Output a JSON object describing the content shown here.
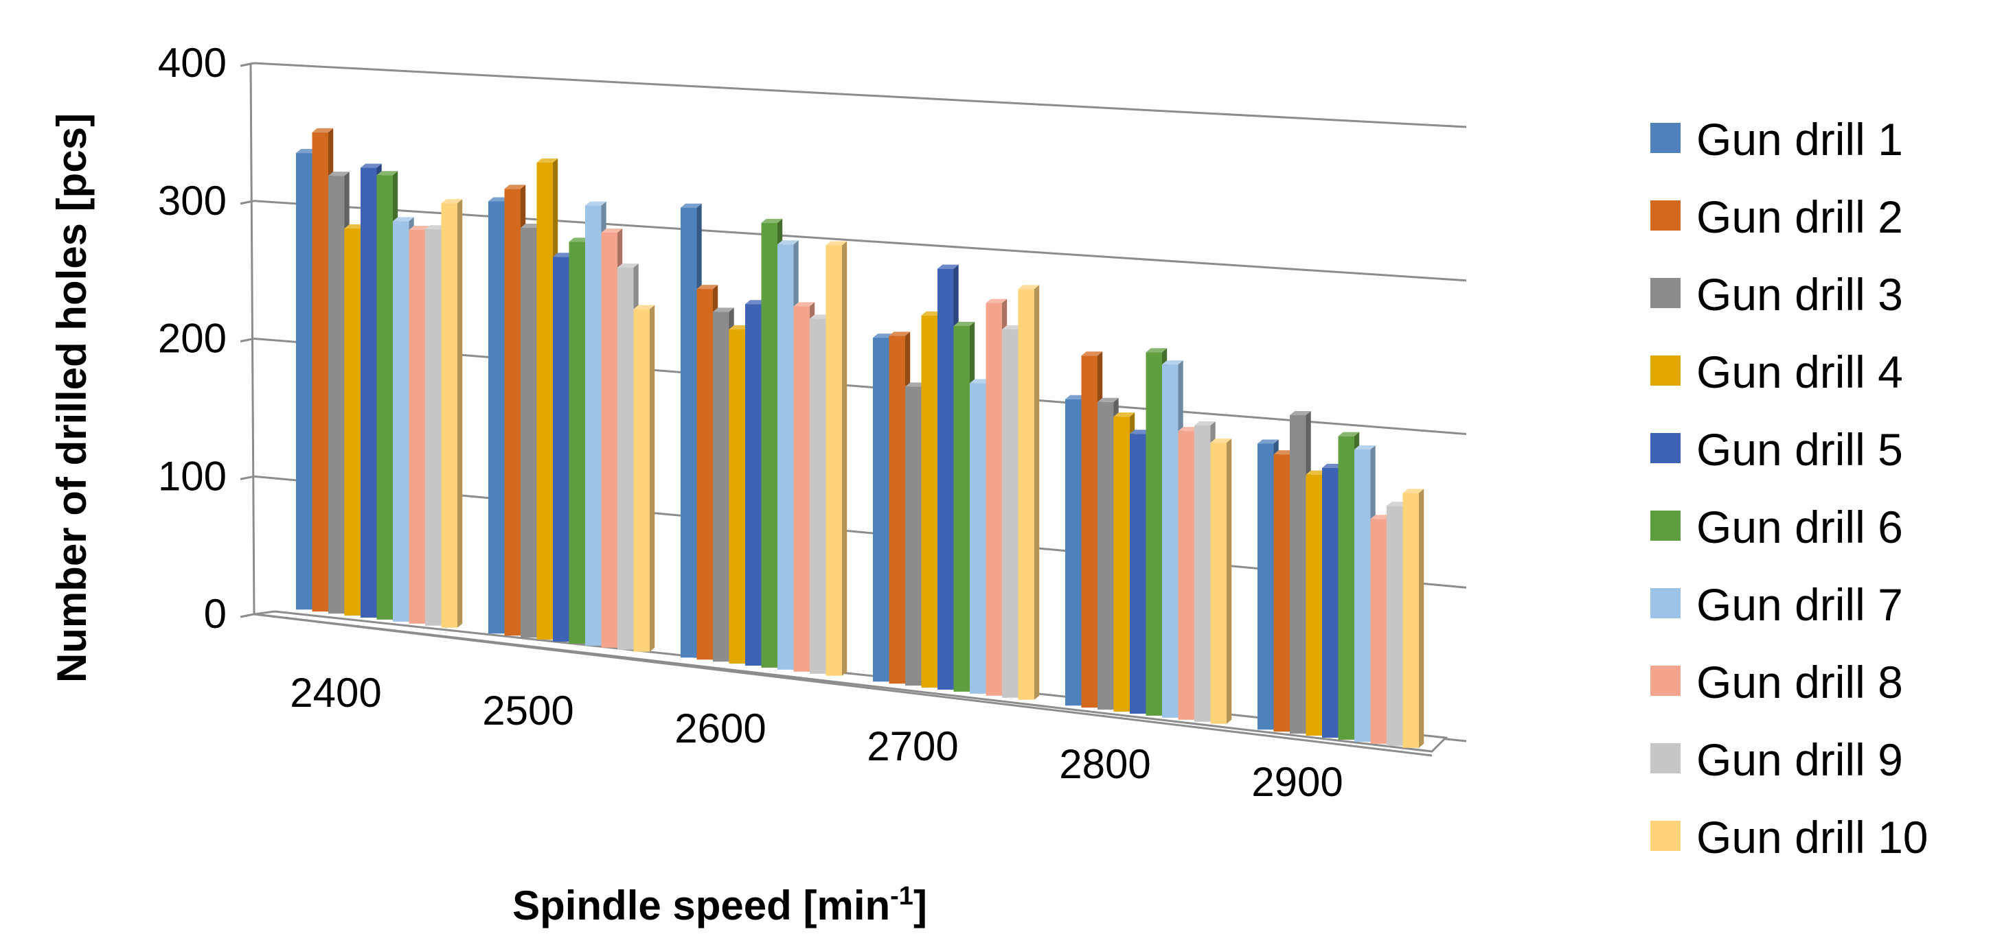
{
  "chart_data": {
    "type": "bar",
    "title": "",
    "xlabel": "Spindle speed [min",
    "xlabel_sup": "-1",
    "xlabel_end": "]",
    "ylabel": "Number of drilled holes [pcs]",
    "ylim": [
      0,
      400
    ],
    "yticks": [
      0,
      100,
      200,
      300,
      400
    ],
    "categories": [
      "2400",
      "2500",
      "2600",
      "2700",
      "2800",
      "2900"
    ],
    "legend_position": "right",
    "series": [
      {
        "name": "Gun drill 1",
        "color": "#4F81BD",
        "values": [
          342,
          328,
          346,
          268,
          242,
          229
        ]
      },
      {
        "name": "Gun drill 2",
        "color": "#D2691E",
        "values": [
          359,
          339,
          285,
          271,
          278,
          222
        ]
      },
      {
        "name": "Gun drill 3",
        "color": "#8C8C8C",
        "values": [
          328,
          311,
          269,
          233,
          243,
          255
        ]
      },
      {
        "name": "Gun drill 4",
        "color": "#E3A800",
        "values": [
          290,
          362,
          257,
          290,
          233,
          209
        ]
      },
      {
        "name": "Gun drill 5",
        "color": "#3E63B5",
        "values": [
          337,
          292,
          278,
          328,
          221,
          216
        ]
      },
      {
        "name": "Gun drill 6",
        "color": "#5F9E3E",
        "values": [
          333,
          305,
          342,
          285,
          287,
          243
        ]
      },
      {
        "name": "Gun drill 7",
        "color": "#9DC3E6",
        "values": [
          300,
          334,
          327,
          242,
          279,
          234
        ]
      },
      {
        "name": "Gun drill 8",
        "color": "#F4A38C",
        "values": [
          295,
          315,
          281,
          306,
          228,
          180
        ]
      },
      {
        "name": "Gun drill 9",
        "color": "#C6C6C6",
        "values": [
          297,
          290,
          273,
          287,
          234,
          192
        ]
      },
      {
        "name": "Gun drill 10",
        "color": "#FFD37A",
        "values": [
          318,
          260,
          331,
          320,
          222,
          204
        ]
      }
    ]
  }
}
